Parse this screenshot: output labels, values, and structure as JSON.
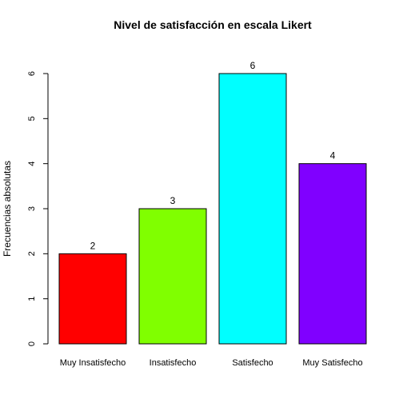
{
  "chart_data": {
    "type": "bar",
    "title": "Nivel de satisfacción en escala Likert",
    "xlabel": "",
    "ylabel": "Frecuencias absolutas",
    "categories": [
      "Muy Insatisfecho",
      "Insatisfecho",
      "Satisfecho",
      "Muy Satisfecho"
    ],
    "values": [
      2,
      3,
      6,
      4
    ],
    "data_labels": [
      "2",
      "3",
      "6",
      "4"
    ],
    "colors": [
      "#ff0000",
      "#80ff00",
      "#00ffff",
      "#8000ff"
    ],
    "ylim": [
      0,
      6
    ],
    "yticks": [
      0,
      1,
      2,
      3,
      4,
      5,
      6
    ],
    "ytick_labels": [
      "0",
      "1",
      "2",
      "3",
      "4",
      "5",
      "6"
    ],
    "grid": false,
    "legend": "none"
  }
}
